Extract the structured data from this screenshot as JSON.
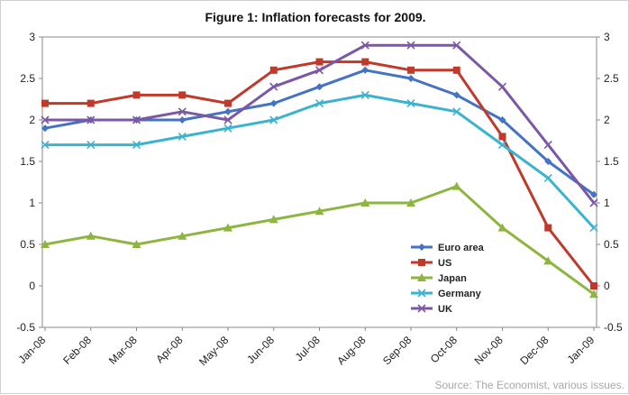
{
  "chart_data": {
    "type": "line",
    "title": "Figure 1: Inflation forecasts for 2009.",
    "xlabel": "",
    "ylabel": "",
    "categories": [
      "Jan-08",
      "Feb-08",
      "Mar-08",
      "Apr-08",
      "May-08",
      "Jun-08",
      "Jul-08",
      "Aug-08",
      "Sep-08",
      "Oct-08",
      "Nov-08",
      "Dec-08",
      "Jan-09"
    ],
    "ylim": [
      -0.5,
      3
    ],
    "yticks": [
      "-0.5",
      "0",
      "0.5",
      "1",
      "1.5",
      "2",
      "2.5",
      "3"
    ],
    "secondary_y_axis": true,
    "grid": false,
    "legend_position": "bottom-center-inside",
    "series": [
      {
        "name": "Euro area",
        "color": "#4472c4",
        "marker": "diamond",
        "values": [
          1.9,
          2.0,
          2.0,
          2.0,
          2.1,
          2.2,
          2.4,
          2.6,
          2.5,
          2.3,
          2.0,
          1.5,
          1.1
        ]
      },
      {
        "name": "US",
        "color": "#c0392b",
        "marker": "square",
        "values": [
          2.2,
          2.2,
          2.3,
          2.3,
          2.2,
          2.6,
          2.7,
          2.7,
          2.6,
          2.6,
          1.8,
          0.7,
          0.0
        ]
      },
      {
        "name": "Japan",
        "color": "#8cb63f",
        "marker": "triangle",
        "values": [
          0.5,
          0.6,
          0.5,
          0.6,
          0.7,
          0.8,
          0.9,
          1.0,
          1.0,
          1.2,
          0.7,
          0.3,
          -0.1
        ]
      },
      {
        "name": "Germany",
        "color": "#3bb3d0",
        "marker": "x",
        "values": [
          1.7,
          1.7,
          1.7,
          1.8,
          1.9,
          2.0,
          2.2,
          2.3,
          2.2,
          2.1,
          1.7,
          1.3,
          0.7
        ]
      },
      {
        "name": "UK",
        "color": "#7b58a6",
        "marker": "x",
        "values": [
          2.0,
          2.0,
          2.0,
          2.1,
          2.0,
          2.4,
          2.6,
          2.9,
          2.9,
          2.9,
          2.4,
          1.7,
          1.0
        ]
      }
    ],
    "source": "Source: The Economist, various issues."
  }
}
